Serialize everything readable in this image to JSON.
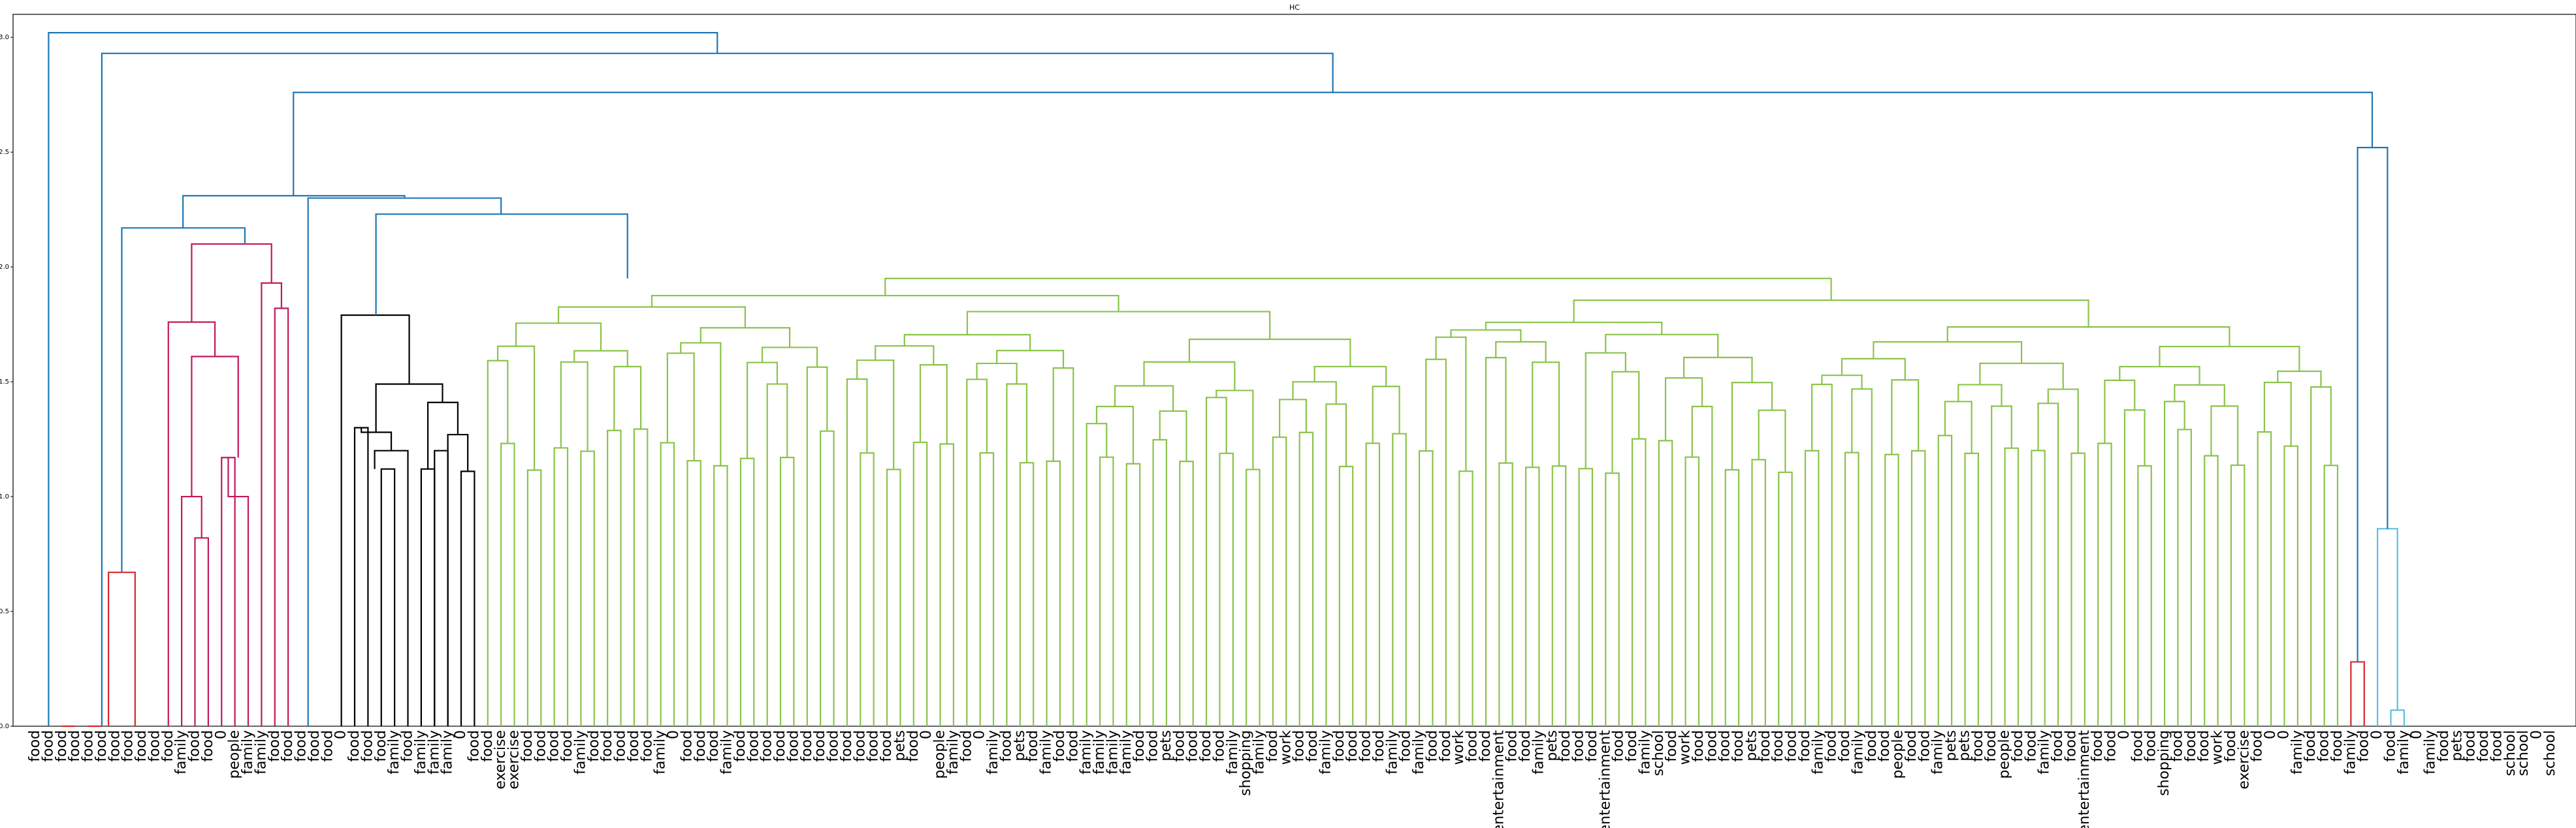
{
  "chart_data": {
    "type": "dendrogram",
    "title": "HC",
    "xlabel": "",
    "ylabel": "",
    "ylim": [
      0,
      3.1
    ],
    "yticks": [
      "0.0",
      "0.5",
      "1.0",
      "1.5",
      "2.0",
      "2.5",
      "3.0"
    ],
    "grid": false,
    "colors": {
      "cluster_red": "#d62728",
      "cluster_magenta": "#c2185b",
      "cluster_black": "#000000",
      "cluster_green": "#8bc34a",
      "cluster_lightblue": "#5bc0de",
      "above_threshold": "#1f77b4"
    },
    "leaf_labels": [
      "food",
      "food",
      "food",
      "food",
      "food",
      "food",
      "food",
      "food",
      "food",
      "food",
      "food",
      "family",
      "food",
      "food",
      "0",
      "people",
      "family",
      "family",
      "food",
      "food",
      "food",
      "food",
      "food",
      "0",
      "food",
      "food",
      "food",
      "family",
      "food",
      "family",
      "family",
      "family",
      "0",
      "food",
      "food",
      "exercise",
      "exercise",
      "food",
      "food",
      "food",
      "food",
      "family",
      "food",
      "food",
      "food",
      "food",
      "food",
      "family",
      "0",
      "food",
      "food",
      "food",
      "family",
      "food",
      "food",
      "food",
      "food",
      "food",
      "food",
      "food",
      "food",
      "food",
      "food",
      "food",
      "food",
      "pets",
      "food",
      "0",
      "people",
      "family",
      "food",
      "0",
      "family",
      "food",
      "pets",
      "food",
      "family",
      "food",
      "food",
      "family",
      "family",
      "family",
      "family",
      "food",
      "food",
      "pets",
      "food",
      "food",
      "food",
      "food",
      "family",
      "shopping",
      "family",
      "food",
      "work",
      "food",
      "food",
      "family",
      "food",
      "food",
      "food",
      "food",
      "family",
      "food",
      "family",
      "food",
      "food",
      "work",
      "food",
      "food",
      "entertainment",
      "food",
      "food",
      "family",
      "pets",
      "food",
      "food",
      "food",
      "entertainment",
      "food",
      "food",
      "family",
      "school",
      "food",
      "work",
      "food",
      "food",
      "food",
      "food",
      "pets",
      "food",
      "food",
      "food",
      "food",
      "family",
      "food",
      "food",
      "family",
      "food",
      "food",
      "people",
      "food",
      "food",
      "family",
      "pets",
      "pets",
      "food",
      "food",
      "people",
      "food",
      "food",
      "family",
      "food",
      "food",
      "entertainment",
      "food",
      "food",
      "0",
      "food",
      "food",
      "shopping",
      "food",
      "food",
      "food",
      "work",
      "food",
      "exercise",
      "food",
      "0",
      "0",
      "family",
      "food",
      "food",
      "food",
      "family",
      "food",
      "0",
      "food",
      "family",
      "0",
      "family",
      "food",
      "pets",
      "food",
      "food",
      "food",
      "school",
      "school",
      "0",
      "school"
    ],
    "links": [
      {
        "cluster": "red",
        "x1": 0,
        "x2": 0,
        "y_left": 0,
        "y_right": 0,
        "y": 0
      },
      {
        "cluster": "red",
        "x1": 2,
        "x2": 3,
        "y_left": 0,
        "y_right": 0,
        "y": 0
      },
      {
        "cluster": "red",
        "x1": 4,
        "x2": 5,
        "y_left": 0,
        "y_right": 0,
        "y": 0
      },
      {
        "cluster": "red",
        "x1": 5.5,
        "x2": 7.5,
        "y_left": 0,
        "y_right": 0,
        "y": 0.67
      },
      {
        "cluster": "magenta",
        "x1": 12,
        "x2": 13,
        "y_left": 0,
        "y_right": 0,
        "y": 0.82
      },
      {
        "cluster": "magenta",
        "x1": 11,
        "x2": 12.5,
        "y_left": 0,
        "y_right": 0.82,
        "y": 1.0
      },
      {
        "cluster": "magenta",
        "x1": 14,
        "x2": 15,
        "y_left": 0,
        "y_right": 0,
        "y": 1.17
      },
      {
        "cluster": "magenta",
        "x1": 14.5,
        "x2": 16,
        "y_left": 1.17,
        "y_right": 0,
        "y": 1.0
      },
      {
        "cluster": "magenta",
        "x1": 11.75,
        "x2": 15.25,
        "y_left": 1.0,
        "y_right": 1.17,
        "y": 1.61
      },
      {
        "cluster": "magenta",
        "x1": 10,
        "x2": 13.5,
        "y_left": 0,
        "y_right": 1.61,
        "y": 1.76
      },
      {
        "cluster": "magenta",
        "x1": 18,
        "x2": 19,
        "y_left": 0,
        "y_right": 0,
        "y": 1.82
      },
      {
        "cluster": "magenta",
        "x1": 17,
        "x2": 18.5,
        "y_left": 0,
        "y_right": 1.82,
        "y": 1.93
      },
      {
        "cluster": "magenta",
        "x1": 11.75,
        "x2": 17.75,
        "y_left": 1.76,
        "y_right": 1.93,
        "y": 2.1
      },
      {
        "cluster": "black",
        "x1": 24,
        "x2": 25,
        "y_left": 0,
        "y_right": 0,
        "y": 1.3
      },
      {
        "cluster": "black",
        "x1": 26,
        "x2": 27,
        "y_left": 0,
        "y_right": 0,
        "y": 1.12
      },
      {
        "cluster": "black",
        "x1": 25.5,
        "x2": 28,
        "y_left": 1.12,
        "y_right": 0,
        "y": 1.2
      },
      {
        "cluster": "black",
        "x1": 24.5,
        "x2": 26.75,
        "y_left": 1.3,
        "y_right": 1.2,
        "y": 1.28
      },
      {
        "cluster": "black",
        "x1": 29,
        "x2": 30,
        "y_left": 0,
        "y_right": 0,
        "y": 1.12
      },
      {
        "cluster": "black",
        "x1": 30,
        "x2": 31,
        "y_left": 0,
        "y_right": 0,
        "y": 1.2
      },
      {
        "cluster": "black",
        "x1": 32,
        "x2": 33,
        "y_left": 0,
        "y_right": 0,
        "y": 1.11
      },
      {
        "cluster": "black",
        "x1": 31,
        "x2": 32.5,
        "y_left": 0,
        "y_right": 1.11,
        "y": 1.27
      },
      {
        "cluster": "black",
        "x1": 29.5,
        "x2": 31.75,
        "y_left": 1.12,
        "y_right": 1.27,
        "y": 1.41
      },
      {
        "cluster": "black",
        "x1": 25.6,
        "x2": 30.6,
        "y_left": 1.28,
        "y_right": 1.41,
        "y": 1.49
      },
      {
        "cluster": "black",
        "x1": 23,
        "x2": 28.1,
        "y_left": 0,
        "y_right": 1.49,
        "y": 1.79
      },
      {
        "cluster": "lightblue",
        "x1": 177,
        "x2": 178,
        "y_left": 0,
        "y_right": 0,
        "y": 0.07
      },
      {
        "cluster": "lightblue",
        "x1": 176,
        "x2": 177.5,
        "y_left": 0,
        "y_right": 0.07,
        "y": 0.86
      },
      {
        "cluster": "red",
        "x1": 174,
        "x2": 175,
        "y_left": 0,
        "y_right": 0,
        "y": 0.28
      },
      {
        "cluster": "above",
        "x1": 6.5,
        "x2": 15.75,
        "y_left": 0.67,
        "y_right": 2.1,
        "y": 2.17
      },
      {
        "cluster": "above",
        "x1": 25.6,
        "x2": 44.5,
        "y_left": 1.79,
        "y_right": 1.95,
        "y": 2.23
      },
      {
        "cluster": "above",
        "x1": 20.5,
        "x2": 35.0,
        "y_left": 0,
        "y_right": 2.23,
        "y": 2.3
      },
      {
        "cluster": "above",
        "x1": 11.1,
        "x2": 27.75,
        "y_left": 2.17,
        "y_right": 2.3,
        "y": 2.31
      },
      {
        "cluster": "above",
        "x1": 174.5,
        "x2": 176.75,
        "y_left": 0.28,
        "y_right": 0.86,
        "y": 2.52
      },
      {
        "cluster": "above",
        "x1": 19.4,
        "x2": 175.6,
        "y_left": 2.31,
        "y_right": 2.52,
        "y": 2.76
      },
      {
        "cluster": "above",
        "x1": 5,
        "x2": 97.5,
        "y_left": 0,
        "y_right": 2.76,
        "y": 2.93
      },
      {
        "cluster": "above",
        "x1": 1,
        "x2": 51.25,
        "y_left": 0,
        "y_right": 2.93,
        "y": 3.02
      }
    ],
    "green_block": {
      "cluster": "green",
      "first_leaf": 34,
      "last_leaf": 173,
      "top_y": 1.95,
      "note_levels": [
        1.95,
        1.92,
        1.88,
        1.84,
        1.72,
        1.69,
        1.67,
        1.64,
        1.62,
        1.59,
        1.55,
        1.52,
        1.48,
        1.45,
        1.42,
        1.38,
        1.35,
        1.31,
        1.28,
        1.25,
        1.22,
        1.18,
        1.15
      ]
    }
  }
}
